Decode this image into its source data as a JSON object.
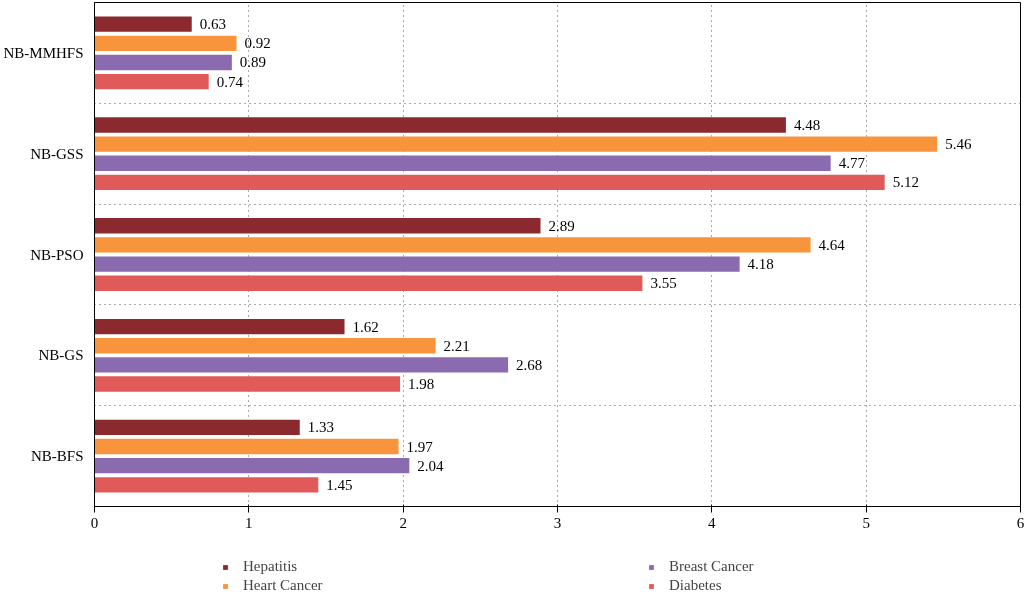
{
  "chart_data": {
    "type": "bar",
    "orientation": "horizontal",
    "categories": [
      "NB-MMHFS",
      "NB-GSS",
      "NB-PSO",
      "NB-GS",
      "NB-BFS"
    ],
    "series": [
      {
        "name": "Hepatitis",
        "color": "#8b2a2e",
        "values": [
          0.63,
          4.48,
          2.89,
          1.62,
          1.33
        ]
      },
      {
        "name": "Heart Cancer",
        "color": "#f7943c",
        "values": [
          0.92,
          5.46,
          4.64,
          2.21,
          1.97
        ]
      },
      {
        "name": "Breast Cancer",
        "color": "#8a6bb0",
        "values": [
          0.89,
          4.77,
          4.18,
          2.68,
          2.04
        ]
      },
      {
        "name": "Diabetes",
        "color": "#e05a5a",
        "values": [
          0.74,
          5.12,
          3.55,
          1.98,
          1.45
        ]
      }
    ],
    "xlim": [
      0,
      6
    ],
    "xticks": [
      0,
      1,
      2,
      3,
      4,
      5,
      6
    ],
    "grid": true,
    "data_labels": true,
    "legend": "bottom"
  }
}
